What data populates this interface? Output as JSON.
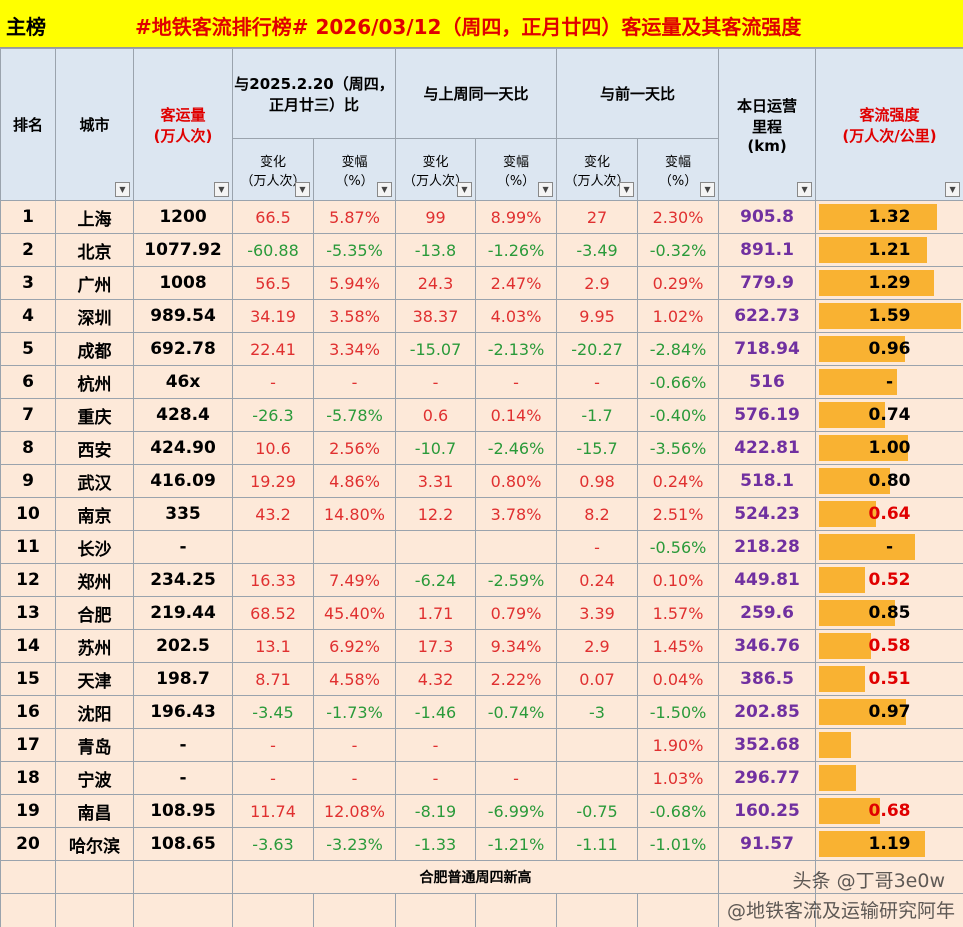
{
  "header": {
    "board": "主榜",
    "title": "#地铁客流排行榜# 2026/03/12（周四，正月廿四）客运量及其客流强度"
  },
  "table": {
    "columns": {
      "rank": "排名",
      "city": "城市",
      "ridership": "客运量\n(万人次)",
      "vs_last_year": "与2025.2.20（周四，正月廿三）比",
      "vs_last_week": "与上周同一天比",
      "vs_prev_day": "与前一天比",
      "mileage": "本日运营\n里程\n(km)",
      "intensity": "客流强度\n(万人次/公里)"
    },
    "sub_columns": [
      "变化\n（万人次）",
      "变幅\n（%）",
      "变化\n（万人次）",
      "变幅\n（%）",
      "变化\n（万人次）",
      "变幅\n（%）"
    ],
    "rows": [
      [
        "1",
        "上海",
        "1200",
        "66.5",
        "5.87%",
        "99",
        "8.99%",
        "27",
        "2.30%",
        "905.8",
        "1.32"
      ],
      [
        "2",
        "北京",
        "1077.92",
        "-60.88",
        "-5.35%",
        "-13.8",
        "-1.26%",
        "-3.49",
        "-0.32%",
        "891.1",
        "1.21"
      ],
      [
        "3",
        "广州",
        "1008",
        "56.5",
        "5.94%",
        "24.3",
        "2.47%",
        "2.9",
        "0.29%",
        "779.9",
        "1.29"
      ],
      [
        "4",
        "深圳",
        "989.54",
        "34.19",
        "3.58%",
        "38.37",
        "4.03%",
        "9.95",
        "1.02%",
        "622.73",
        "1.59"
      ],
      [
        "5",
        "成都",
        "692.78",
        "22.41",
        "3.34%",
        "-15.07",
        "-2.13%",
        "-20.27",
        "-2.84%",
        "718.94",
        "0.96"
      ],
      [
        "6",
        "杭州",
        "46x",
        "-",
        "-",
        "-",
        "-",
        "-",
        "-0.66%",
        "516",
        "-"
      ],
      [
        "7",
        "重庆",
        "428.4",
        "-26.3",
        "-5.78%",
        "0.6",
        "0.14%",
        "-1.7",
        "-0.40%",
        "576.19",
        "0.74"
      ],
      [
        "8",
        "西安",
        "424.90",
        "10.6",
        "2.56%",
        "-10.7",
        "-2.46%",
        "-15.7",
        "-3.56%",
        "422.81",
        "1.00"
      ],
      [
        "9",
        "武汉",
        "416.09",
        "19.29",
        "4.86%",
        "3.31",
        "0.80%",
        "0.98",
        "0.24%",
        "518.1",
        "0.80"
      ],
      [
        "10",
        "南京",
        "335",
        "43.2",
        "14.80%",
        "12.2",
        "3.78%",
        "8.2",
        "2.51%",
        "524.23",
        "0.64"
      ],
      [
        "11",
        "长沙",
        "-",
        null,
        null,
        null,
        null,
        "-",
        "-0.56%",
        "218.28",
        "-"
      ],
      [
        "12",
        "郑州",
        "234.25",
        "16.33",
        "7.49%",
        "-6.24",
        "-2.59%",
        "0.24",
        "0.10%",
        "449.81",
        "0.52"
      ],
      [
        "13",
        "合肥",
        "219.44",
        "68.52",
        "45.40%",
        "1.71",
        "0.79%",
        "3.39",
        "1.57%",
        "259.6",
        "0.85"
      ],
      [
        "14",
        "苏州",
        "202.5",
        "13.1",
        "6.92%",
        "17.3",
        "9.34%",
        "2.9",
        "1.45%",
        "346.76",
        "0.58"
      ],
      [
        "15",
        "天津",
        "198.7",
        "8.71",
        "4.58%",
        "4.32",
        "2.22%",
        "0.07",
        "0.04%",
        "386.5",
        "0.51"
      ],
      [
        "16",
        "沈阳",
        "196.43",
        "-3.45",
        "-1.73%",
        "-1.46",
        "-0.74%",
        "-3",
        "-1.50%",
        "202.85",
        "0.97"
      ],
      [
        "17",
        "青岛",
        "-",
        "-",
        "-",
        "-",
        null,
        null,
        "1.90%",
        "352.68",
        null
      ],
      [
        "18",
        "宁波",
        "-",
        "-",
        "-",
        "-",
        "-",
        null,
        "1.03%",
        "296.77",
        null
      ],
      [
        "19",
        "南昌",
        "108.95",
        "11.74",
        "12.08%",
        "-8.19",
        "-6.99%",
        "-0.75",
        "-0.68%",
        "160.25",
        "0.68"
      ],
      [
        "20",
        "哈尔滨",
        "108.65",
        "-3.63",
        "-3.23%",
        "-1.33",
        "-1.21%",
        "-1.11",
        "-1.01%",
        "91.57",
        "1.19"
      ]
    ],
    "intensity_bar": [
      1.32,
      1.21,
      1.29,
      1.59,
      0.96,
      0.87,
      0.74,
      1.0,
      0.8,
      0.64,
      1.07,
      0.52,
      0.85,
      0.58,
      0.51,
      0.97,
      0.36,
      0.41,
      0.68,
      1.19
    ],
    "note": "合肥普通周四新高"
  },
  "watermarks": [
    "头条 @丁哥3e0w",
    "@地铁客流及运输研究阿年"
  ]
}
